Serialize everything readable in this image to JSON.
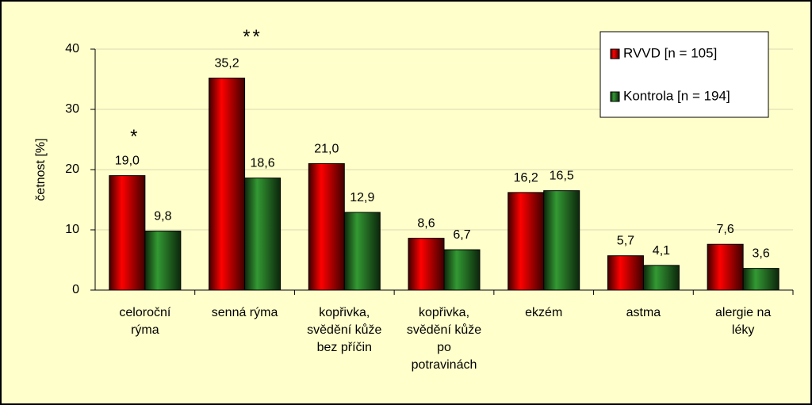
{
  "chart_data": {
    "type": "bar",
    "y_label": "četnost [%]",
    "categories": [
      "celoroční rýma",
      "senná rýma",
      "kopřivka, svědění kůže bez příčin",
      "kopřivka, svědění kůže po potravinách",
      "ekzém",
      "astma",
      "alergie na léky"
    ],
    "series": [
      {
        "name": "RVVD [n = 105]",
        "color": "#ff0000",
        "values": [
          19.0,
          35.2,
          21.0,
          8.6,
          16.2,
          5.7,
          7.6
        ],
        "value_labels": [
          "19,0",
          "35,2",
          "21,0",
          "8,6",
          "16,2",
          "5,7",
          "7,6"
        ]
      },
      {
        "name": "Kontrola [n = 194]",
        "color": "#339933",
        "values": [
          9.8,
          18.6,
          12.9,
          6.7,
          16.5,
          4.1,
          3.6
        ],
        "value_labels": [
          "9,8",
          "18,6",
          "12,9",
          "6,7",
          "16,5",
          "4,1",
          "3,6"
        ]
      }
    ],
    "annotations": [
      "*",
      "**"
    ],
    "ylim": [
      0,
      40
    ],
    "yticks": [
      0,
      10,
      20,
      30,
      40
    ],
    "grid": true,
    "legend": "top-right"
  }
}
